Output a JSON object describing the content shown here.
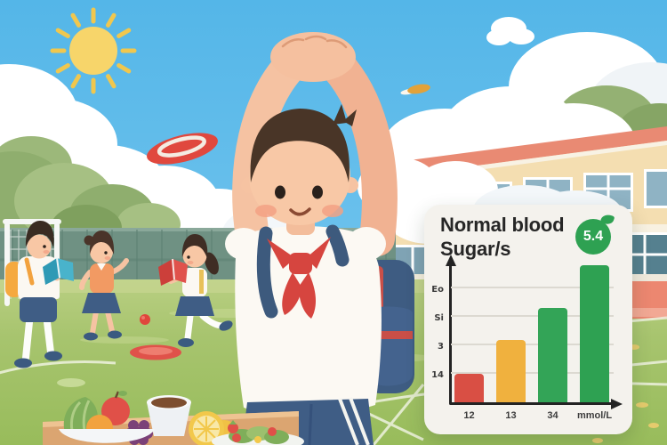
{
  "card": {
    "title_lines": [
      "Normal blood",
      "Sugar/s"
    ],
    "badge": {
      "value": "5.4",
      "color": "#2ea152"
    }
  },
  "chart_data": {
    "type": "bar",
    "title": "Normal blood Sugar/s",
    "categories": [
      "12",
      "13",
      "34",
      "mmol/L"
    ],
    "values": [
      1.0,
      2.2,
      3.3,
      4.8
    ],
    "bar_colors": [
      "#d94f44",
      "#f0b13e",
      "#33a457",
      "#2ea152"
    ],
    "ylim": [
      0,
      5
    ],
    "yticks": [
      {
        "value": 4,
        "label": "Eo"
      },
      {
        "value": 3,
        "label": "Si"
      },
      {
        "value": 2,
        "label": "3"
      },
      {
        "value": 1,
        "label": "14"
      }
    ],
    "grid": true,
    "legend": false,
    "annotation_badge": "5.4"
  },
  "palette": {
    "sky": "#5fbce9",
    "sun": "#f7d56a",
    "grass": "#a7c46e",
    "track": "#ec8770",
    "building": "#f4deb1",
    "roof": "#e98a73",
    "card_bg": "#f4f2ed",
    "accent_red": "#d6453f",
    "accent_navy": "#3e5c82"
  }
}
